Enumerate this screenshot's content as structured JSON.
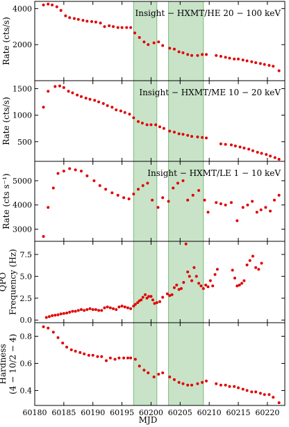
{
  "chart_data": {
    "type": "scatter",
    "x_label": "MJD",
    "xlim": [
      60180,
      60223
    ],
    "x_ticks": [
      60180,
      60185,
      60190,
      60195,
      60200,
      60205,
      60210,
      60215,
      60220
    ],
    "x_tick_labels": [
      "60180",
      "60185",
      "60190",
      "60195",
      "60200",
      "60205",
      "60210",
      "60215",
      "60220"
    ],
    "shaded_intervals": [
      [
        60197,
        60201
      ],
      [
        60203,
        60209
      ]
    ],
    "shade_color": "#3a9a3a",
    "marker_color": "#e00000",
    "panels": [
      {
        "ylabel": "Rate (cts/s)",
        "ylim": [
          0,
          4400
        ],
        "yticks": [
          2000,
          4000
        ],
        "ytick_labels": [
          "2000",
          "4000"
        ],
        "annotation": "Insight − HXMT/HE  20 − 100 keV",
        "series": [
          {
            "x": [
              60181.5,
              60182.3,
              60183.0,
              60183.8,
              60184.5,
              60185.3,
              60186.0,
              60186.8,
              60187.5,
              60188.3,
              60189.0,
              60189.8,
              60190.5,
              60191.3,
              60192.0,
              60192.8,
              60193.5,
              60194.3,
              60195.0,
              60195.8,
              60196.5,
              60197.2,
              60198.0,
              60198.8,
              60199.5,
              60200.5,
              60201.3,
              60202.0,
              60203.2,
              60204.0,
              60204.8,
              60205.5,
              60206.3,
              60207.0,
              60208.0,
              60208.8,
              60209.5,
              60211.2,
              60212.0,
              60212.8,
              60213.5,
              60214.3,
              60215.0,
              60215.8,
              60216.5,
              60217.3,
              60218.0,
              60218.8,
              60219.5,
              60220.3,
              60221.0,
              60222.0
            ],
            "y": [
              4200,
              4250,
              4200,
              4100,
              3900,
              3600,
              3500,
              3450,
              3400,
              3350,
              3300,
              3280,
              3250,
              3200,
              3000,
              3050,
              3000,
              2950,
              2950,
              2950,
              2950,
              2650,
              2400,
              2150,
              2000,
              2100,
              2150,
              1950,
              1800,
              1750,
              1600,
              1550,
              1450,
              1400,
              1400,
              1450,
              1450,
              1400,
              1350,
              1300,
              1250,
              1200,
              1200,
              1150,
              1100,
              1050,
              1000,
              950,
              900,
              850,
              800,
              550
            ]
          }
        ]
      },
      {
        "ylabel": "Rate (cts/s)",
        "ylim": [
          130,
          1650
        ],
        "yticks": [
          500,
          1000,
          1500
        ],
        "ytick_labels": [
          "500",
          "1000",
          "1500"
        ],
        "annotation": "Insight − HXMT/ME  10 − 20 keV",
        "series": [
          {
            "x": [
              60181.5,
              60182.3,
              60183.5,
              60184.3,
              60185.0,
              60185.8,
              60186.5,
              60187.3,
              60188.0,
              60188.8,
              60189.5,
              60190.3,
              60191.0,
              60191.8,
              60192.5,
              60193.3,
              60194.0,
              60194.8,
              60195.5,
              60196.3,
              60197.0,
              60197.8,
              60198.5,
              60199.3,
              60200.0,
              60200.8,
              60201.5,
              60202.2,
              60203.2,
              60204.0,
              60204.8,
              60205.5,
              60206.3,
              60207.0,
              60208.0,
              60208.8,
              60209.5,
              60212.0,
              60212.8,
              60213.8,
              60214.5,
              60215.3,
              60216.0,
              60216.8,
              60217.5,
              60218.3,
              60219.0,
              60219.8,
              60220.5,
              60221.3,
              60222.0
            ],
            "y": [
              1150,
              1450,
              1540,
              1550,
              1520,
              1450,
              1420,
              1380,
              1350,
              1320,
              1300,
              1280,
              1250,
              1220,
              1180,
              1150,
              1100,
              1080,
              1050,
              1020,
              950,
              880,
              850,
              820,
              820,
              820,
              780,
              750,
              700,
              680,
              650,
              640,
              620,
              600,
              590,
              580,
              570,
              460,
              450,
              440,
              420,
              400,
              380,
              360,
              330,
              300,
              280,
              260,
              230,
              200,
              170
            ]
          }
        ]
      },
      {
        "ylabel": "Rate (cts s⁻¹)",
        "ylim": [
          2500,
          5800
        ],
        "yticks": [
          3000,
          4000,
          5000
        ],
        "ytick_labels": [
          "3000",
          "4000",
          "5000"
        ],
        "annotation": "Insight − HXMT/LE  1 − 10 keV",
        "series": [
          {
            "x": [
              60181.5,
              60182.3,
              60183.2,
              60184.0,
              60185.0,
              60186.0,
              60187.0,
              60188.0,
              60189.0,
              60190.2,
              60191.2,
              60192.2,
              60193.3,
              60194.3,
              60195.3,
              60196.2,
              60197.0,
              60197.8,
              60198.6,
              60199.4,
              60200.2,
              60201.2,
              60202.0,
              60203.0,
              60203.8,
              60204.6,
              60205.5,
              60206.3,
              60207.2,
              60208.2,
              60209.2,
              60209.8,
              60211.2,
              60212.0,
              60212.8,
              60213.8,
              60214.8,
              60215.8,
              60216.6,
              60217.4,
              60218.2,
              60218.9,
              60219.7,
              60220.5,
              60221.2,
              60222.0
            ],
            "y": [
              2700,
              3900,
              4700,
              5300,
              5400,
              5500,
              5450,
              5400,
              5200,
              5000,
              4800,
              4650,
              4500,
              4400,
              4300,
              4250,
              4450,
              4650,
              4800,
              4900,
              4200,
              3900,
              4300,
              4150,
              4700,
              4900,
              5000,
              4200,
              4400,
              4600,
              4200,
              3700,
              4100,
              4050,
              4000,
              4100,
              3350,
              3900,
              4000,
              4150,
              3700,
              3800,
              3900,
              3750,
              4200,
              4400
            ]
          }
        ]
      },
      {
        "ylabel": "QPO Frequency (Hz)",
        "ylim": [
          -0.3,
          9.0
        ],
        "yticks": [
          0.0,
          2.5,
          5.0,
          7.5
        ],
        "ytick_labels": [
          "0.0",
          "2.5",
          "5.0",
          "7.5"
        ],
        "series": [
          {
            "x": [
              60182.0,
              60182.5,
              60183.0,
              60183.5,
              60184.0,
              60184.5,
              60185.0,
              60185.5,
              60186.0,
              60186.5,
              60187.0,
              60187.5,
              60188.0,
              60188.5,
              60189.0,
              60189.5,
              60190.0,
              60190.5,
              60191.0,
              60191.5,
              60192.0,
              60192.5,
              60193.0,
              60193.5,
              60194.0,
              60194.5,
              60195.0,
              60195.5,
              60196.0,
              60196.5,
              60197.0,
              60197.3,
              60197.7,
              60198.0,
              60198.3,
              60198.6,
              60199.0,
              60199.3,
              60199.6,
              60200.0,
              60200.3,
              60200.6,
              60201.0,
              60201.5,
              60202.0,
              60202.8,
              60203.2,
              60203.6,
              60204.0,
              60204.4,
              60204.8,
              60205.2,
              60205.6,
              60206.0,
              60206.3,
              60206.6,
              60207.0,
              60207.4,
              60207.8,
              60208.2,
              60208.6,
              60209.0,
              60209.4,
              60209.8,
              60210.2,
              60210.6,
              60211.0,
              60211.4,
              60214.0,
              60214.4,
              60214.8,
              60215.2,
              60215.6,
              60216.0,
              60216.5,
              60217.0,
              60217.5,
              60218.0,
              60218.5,
              60219.0
            ],
            "y": [
              0.3,
              0.4,
              0.5,
              0.55,
              0.6,
              0.7,
              0.75,
              0.8,
              0.9,
              1.0,
              1.0,
              1.1,
              1.2,
              1.1,
              1.2,
              1.3,
              1.2,
              1.2,
              1.1,
              1.1,
              1.4,
              1.5,
              1.4,
              1.3,
              1.2,
              1.5,
              1.6,
              1.5,
              1.4,
              1.3,
              1.6,
              1.8,
              2.0,
              2.2,
              2.3,
              2.6,
              2.9,
              2.5,
              2.7,
              2.7,
              2.3,
              1.9,
              2.0,
              2.1,
              2.6,
              3.0,
              2.8,
              2.9,
              3.7,
              4.0,
              3.5,
              3.6,
              4.3,
              8.7,
              5.5,
              5.0,
              4.5,
              6.0,
              5.0,
              4.2,
              3.9,
              3.6,
              4.0,
              3.8,
              4.5,
              3.9,
              5.2,
              5.8,
              5.7,
              4.8,
              3.9,
              4.0,
              4.2,
              4.5,
              6.3,
              6.8,
              7.3,
              6.0,
              5.8,
              6.5
            ]
          }
        ]
      },
      {
        "ylabel": "Hardness (4 − 10/2 − 4)",
        "ylim": [
          0.29,
          0.9
        ],
        "yticks": [
          0.4,
          0.6,
          0.8
        ],
        "ytick_labels": [
          "0.4",
          "0.6",
          "0.8"
        ],
        "series": [
          {
            "x": [
              60181.5,
              60182.3,
              60183.2,
              60184.0,
              60184.8,
              60185.5,
              60186.3,
              60187.0,
              60187.8,
              60188.5,
              60189.3,
              60190.0,
              60190.8,
              60191.5,
              60192.3,
              60193.0,
              60193.8,
              60194.5,
              60195.3,
              60196.0,
              60196.5,
              60197.3,
              60198.0,
              60198.8,
              60199.5,
              60200.5,
              60201.3,
              60202.0,
              60203.2,
              60204.0,
              60204.8,
              60205.5,
              60206.3,
              60207.0,
              60208.0,
              60208.8,
              60209.5,
              60211.2,
              60212.0,
              60212.8,
              60213.5,
              60214.3,
              60215.0,
              60215.8,
              60216.5,
              60217.3,
              60218.0,
              60218.8,
              60219.5,
              60220.3,
              60221.0,
              60222.0
            ],
            "y": [
              0.87,
              0.86,
              0.83,
              0.79,
              0.75,
              0.72,
              0.7,
              0.69,
              0.68,
              0.67,
              0.66,
              0.66,
              0.65,
              0.65,
              0.62,
              0.64,
              0.63,
              0.64,
              0.64,
              0.64,
              0.64,
              0.63,
              0.58,
              0.55,
              0.53,
              0.5,
              0.52,
              0.53,
              0.5,
              0.48,
              0.46,
              0.45,
              0.44,
              0.44,
              0.45,
              0.46,
              0.47,
              0.45,
              0.44,
              0.44,
              0.43,
              0.43,
              0.42,
              0.41,
              0.4,
              0.39,
              0.39,
              0.38,
              0.37,
              0.37,
              0.35,
              0.31
            ]
          }
        ]
      }
    ]
  }
}
